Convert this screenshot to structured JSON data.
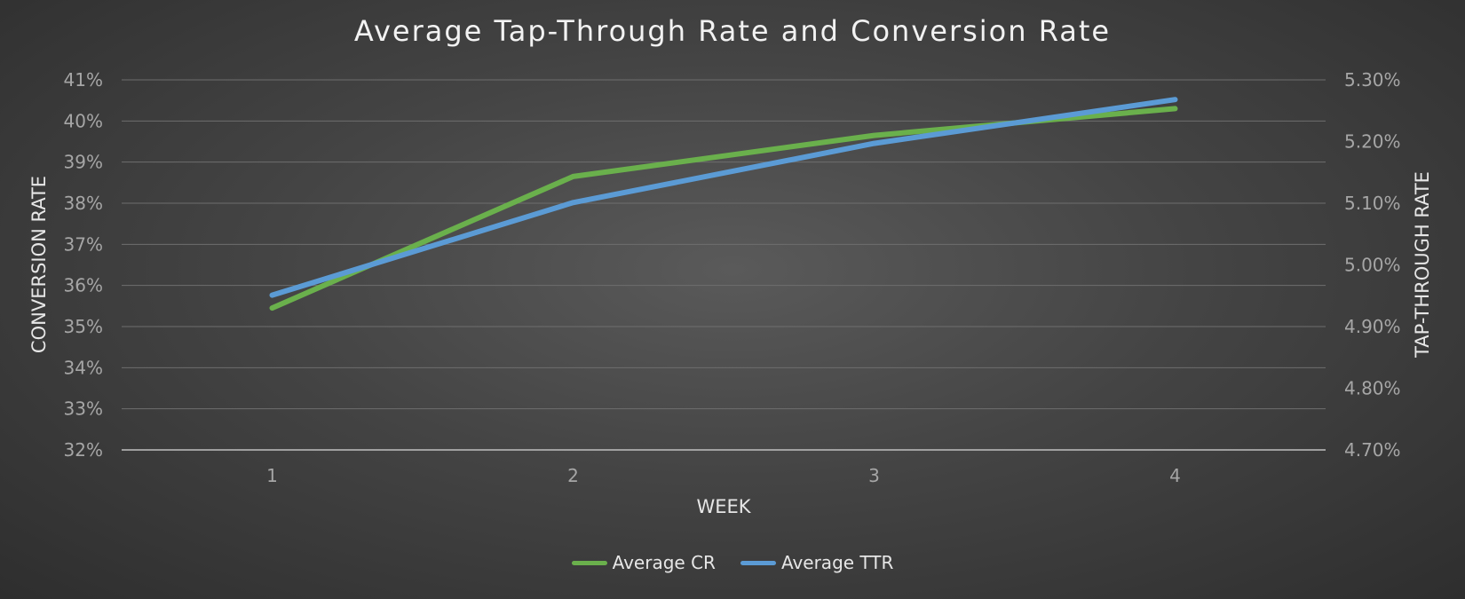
{
  "chart_data": {
    "type": "line",
    "title": "Average Tap-Through Rate and Conversion Rate",
    "xlabel": "WEEK",
    "ylabel_left": "CONVERSION RATE",
    "ylabel_right": "TAP-THROUGH RATE",
    "categories": [
      "1",
      "2",
      "3",
      "4"
    ],
    "y_left_ticks": [
      "32%",
      "33%",
      "34%",
      "35%",
      "36%",
      "37%",
      "38%",
      "39%",
      "40%",
      "41%"
    ],
    "y_right_ticks": [
      "4.70%",
      "4.80%",
      "4.90%",
      "5.00%",
      "5.10%",
      "5.20%",
      "5.30%"
    ],
    "y_left_lim": [
      32,
      41
    ],
    "y_right_lim": [
      4.7,
      5.3
    ],
    "grid": true,
    "legend_position": "bottom",
    "series": [
      {
        "name": "Average CR",
        "axis": "left",
        "color": "#6ab04c",
        "values": [
          35.45,
          38.65,
          39.65,
          40.3
        ]
      },
      {
        "name": "Average TTR",
        "axis": "right",
        "color": "#5b9bd5",
        "values": [
          4.951,
          5.101,
          5.197,
          5.268
        ]
      }
    ]
  }
}
